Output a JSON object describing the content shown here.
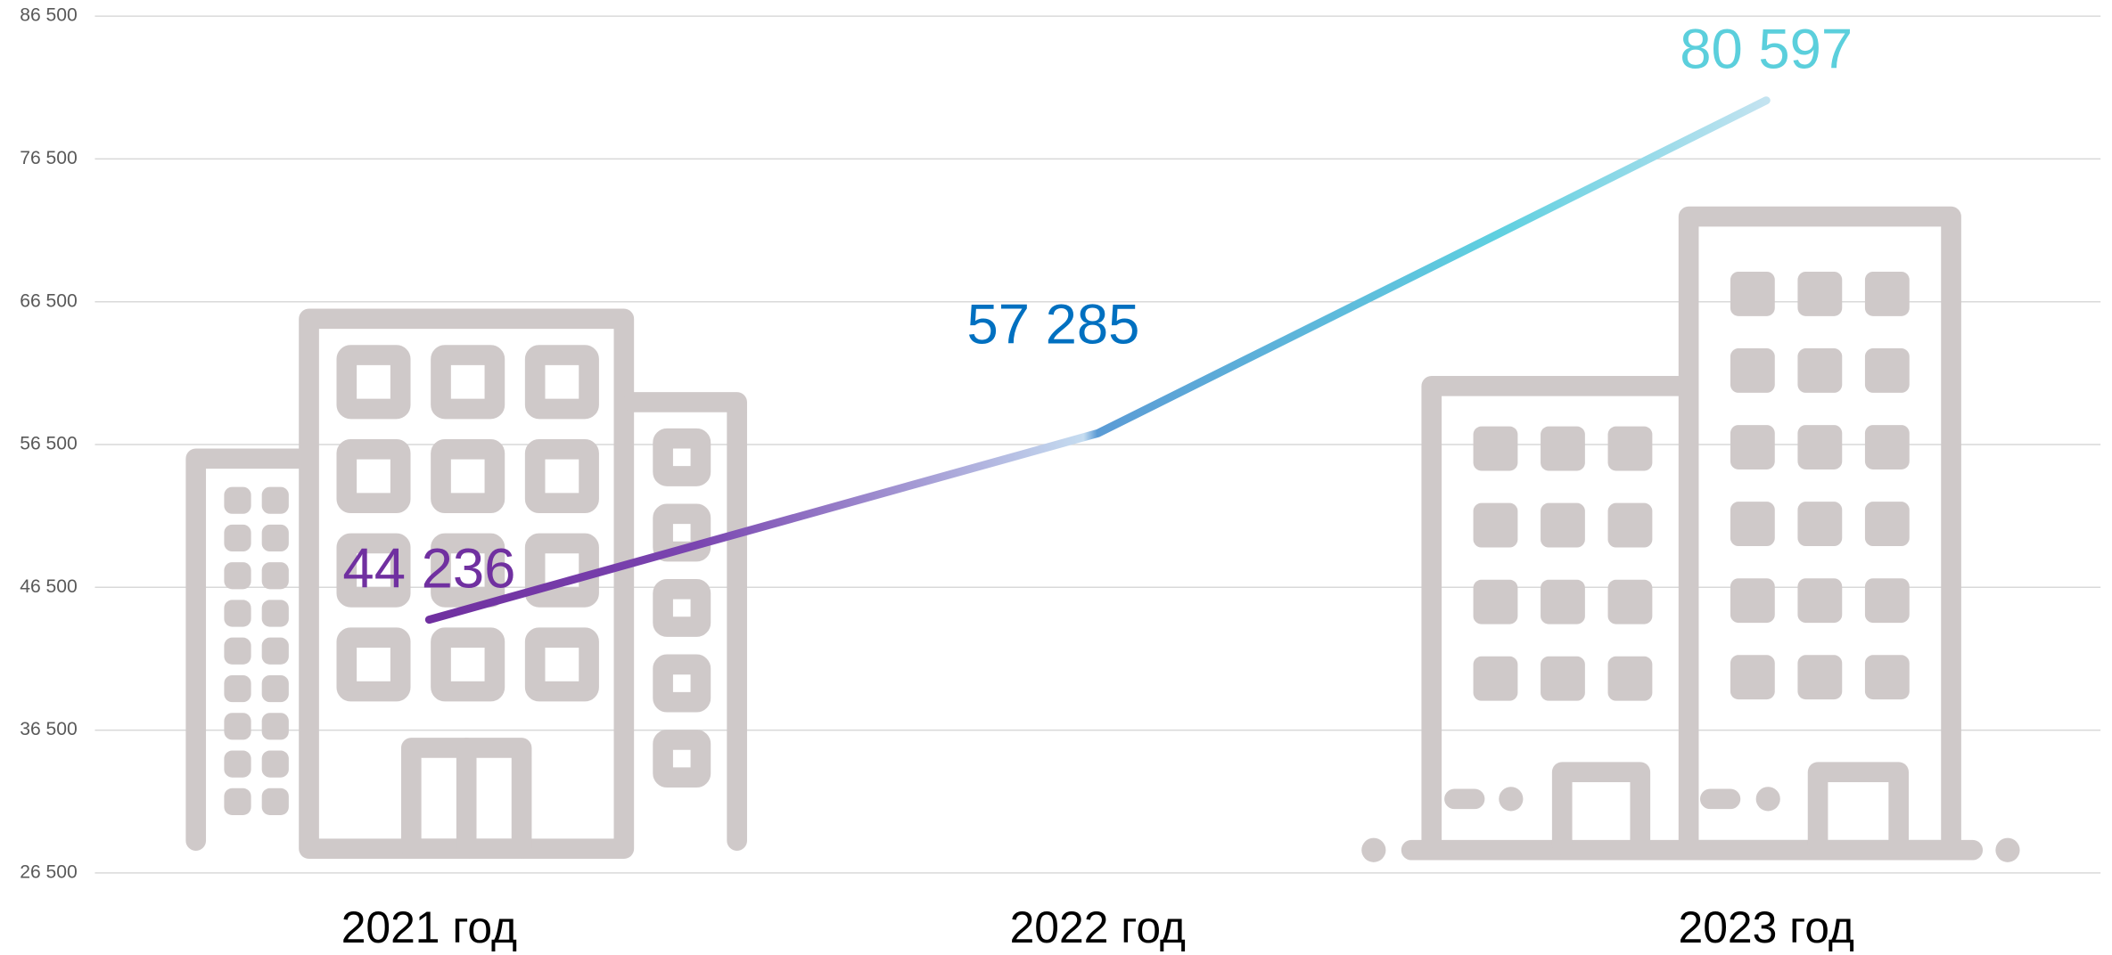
{
  "chart_data": {
    "type": "line",
    "categories": [
      "2021 год",
      "2022 год",
      "2023 год"
    ],
    "values": [
      44236,
      57285,
      80597
    ],
    "value_labels": [
      "44 236",
      "57 285",
      "80 597"
    ],
    "label_colors": [
      "#7030a0",
      "#0070c0",
      "#5bcfdc"
    ],
    "ylim": [
      26500,
      86500
    ],
    "yticks": [
      {
        "value": 26500,
        "label": "26 500"
      },
      {
        "value": 36500,
        "label": "36 500"
      },
      {
        "value": 46500,
        "label": "46 500"
      },
      {
        "value": 56500,
        "label": "56 500"
      },
      {
        "value": 66500,
        "label": "66 500"
      },
      {
        "value": 76500,
        "label": "76 500"
      },
      {
        "value": 86500,
        "label": "86 500"
      }
    ],
    "grid": true
  }
}
